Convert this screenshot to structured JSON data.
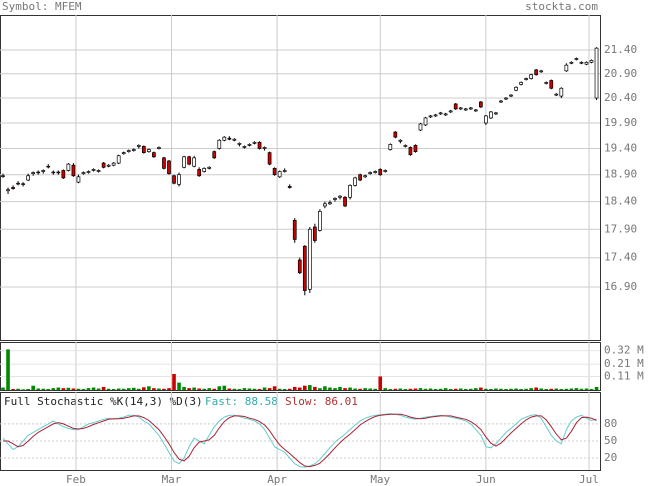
{
  "header": {
    "symbol": "Symbol: MFEM",
    "source": "stockta.com"
  },
  "chart_data": [
    {
      "type": "candlestick",
      "log_scale": true,
      "grid": true,
      "up_color": "#ffffff",
      "down_color": "#cc0000",
      "ylim": [
        16.03,
        22.16
      ],
      "yticks": [
        {
          "value": 21.4,
          "label": "21.40"
        },
        {
          "value": 20.9,
          "label": "20.90"
        },
        {
          "value": 20.4,
          "label": "20.40"
        },
        {
          "value": 19.9,
          "label": "19.90"
        },
        {
          "value": 19.4,
          "label": "19.40"
        },
        {
          "value": 18.9,
          "label": "18.90"
        },
        {
          "value": 18.4,
          "label": "18.40"
        },
        {
          "value": 17.9,
          "label": "17.90"
        },
        {
          "value": 17.4,
          "label": "17.40"
        },
        {
          "value": 16.9,
          "label": "16.90"
        }
      ],
      "xticks": [
        {
          "value": 14.5,
          "label": "Feb"
        },
        {
          "value": 33.5,
          "label": "Mar"
        },
        {
          "value": 54.5,
          "label": "Apr"
        },
        {
          "value": 75,
          "label": "May"
        },
        {
          "value": 96,
          "label": "Jun"
        },
        {
          "value": 116.5,
          "label": "Jul"
        }
      ],
      "open": [
        18.88,
        18.6,
        18.66,
        18.74,
        18.72,
        18.8,
        18.92,
        18.94,
        18.96,
        19.06,
        18.94,
        18.94,
        18.98,
        18.98,
        19.08,
        18.76,
        18.92,
        18.94,
        18.98,
        18.96,
        19.12,
        19.06,
        19.08,
        19.12,
        19.3,
        19.34,
        19.36,
        19.44,
        19.44,
        19.34,
        19.32,
        19.4,
        19.22,
        19.16,
        18.88,
        18.72,
        19.04,
        19.24,
        19.06,
        19.0,
        18.96,
        19.02,
        19.34,
        19.4,
        19.56,
        19.6,
        19.56,
        19.48,
        19.42,
        19.46,
        19.5,
        19.52,
        19.4,
        19.32,
        19.02,
        18.86,
        18.96,
        18.68,
        18.06,
        17.36,
        17.6,
        16.86,
        17.94,
        17.88,
        18.32,
        18.36,
        18.44,
        18.48,
        18.48,
        18.48,
        18.7,
        18.9,
        18.86,
        18.92,
        18.94,
        19.0,
        18.96,
        19.38,
        19.72,
        19.54,
        19.44,
        19.42,
        19.46,
        19.76,
        19.86,
        20.02,
        20.04,
        20.08,
        20.06,
        20.12,
        20.28,
        20.18,
        20.16,
        20.18,
        20.14,
        20.32,
        19.9,
        20.0,
        20.08,
        20.32,
        20.38,
        20.44,
        20.56,
        20.68,
        20.78,
        20.8,
        20.98,
        20.94,
        20.7,
        20.76,
        20.46,
        20.44,
        20.96,
        21.12,
        21.2,
        21.12,
        21.1,
        21.14,
        20.4
      ],
      "high": [
        18.92,
        18.66,
        18.7,
        18.78,
        18.76,
        18.92,
        18.96,
        18.98,
        19.0,
        19.1,
        18.98,
        18.98,
        19.0,
        19.12,
        19.12,
        18.9,
        18.96,
        18.98,
        19.02,
        19.0,
        19.14,
        19.1,
        19.14,
        19.28,
        19.34,
        19.38,
        19.4,
        19.48,
        19.46,
        19.4,
        19.34,
        19.44,
        19.24,
        19.18,
        18.9,
        18.94,
        19.26,
        19.26,
        19.26,
        19.04,
        19.04,
        19.06,
        19.36,
        19.58,
        19.64,
        19.64,
        19.6,
        19.52,
        19.46,
        19.5,
        19.54,
        19.54,
        19.44,
        19.34,
        19.04,
        18.98,
        19.02,
        18.72,
        18.1,
        17.4,
        17.62,
        17.94,
        18.0,
        18.26,
        18.4,
        18.42,
        18.48,
        18.52,
        18.5,
        18.72,
        18.86,
        18.92,
        18.9,
        18.96,
        18.98,
        19.02,
        19.0,
        19.5,
        19.74,
        19.58,
        19.48,
        19.44,
        19.48,
        19.9,
        20.02,
        20.06,
        20.08,
        20.12,
        20.1,
        20.16,
        20.3,
        20.22,
        20.2,
        20.22,
        20.18,
        20.34,
        20.06,
        20.14,
        20.12,
        20.36,
        20.42,
        20.48,
        20.64,
        20.74,
        20.82,
        20.9,
        21.0,
        20.98,
        20.74,
        20.78,
        20.5,
        20.62,
        21.12,
        21.16,
        21.24,
        21.16,
        21.16,
        21.2,
        21.46
      ],
      "low": [
        18.84,
        18.54,
        18.62,
        18.7,
        18.68,
        18.78,
        18.88,
        18.9,
        18.92,
        19.02,
        18.9,
        18.9,
        18.82,
        18.96,
        18.86,
        18.74,
        18.9,
        18.92,
        18.96,
        18.94,
        19.02,
        19.04,
        19.06,
        19.1,
        19.28,
        19.32,
        19.34,
        19.4,
        19.3,
        19.32,
        19.22,
        19.38,
        19.0,
        18.9,
        18.72,
        18.68,
        19.02,
        19.08,
        19.04,
        18.86,
        18.94,
        19.0,
        19.2,
        19.38,
        19.54,
        19.56,
        19.54,
        19.44,
        19.4,
        19.44,
        19.48,
        19.38,
        19.36,
        19.08,
        18.88,
        18.84,
        18.94,
        18.64,
        17.66,
        17.12,
        16.76,
        16.8,
        17.66,
        17.86,
        18.28,
        18.34,
        18.4,
        18.44,
        18.3,
        18.44,
        18.68,
        18.78,
        18.84,
        18.9,
        18.92,
        18.88,
        18.94,
        19.36,
        19.6,
        19.5,
        19.42,
        19.26,
        19.32,
        19.74,
        19.84,
        20.0,
        20.02,
        20.06,
        20.04,
        20.1,
        20.16,
        20.16,
        20.14,
        20.16,
        20.12,
        20.2,
        19.86,
        19.98,
        20.06,
        20.3,
        20.36,
        20.42,
        20.54,
        20.66,
        20.76,
        20.78,
        20.86,
        20.92,
        20.68,
        20.58,
        20.44,
        20.4,
        20.94,
        21.1,
        21.18,
        21.1,
        21.08,
        21.12,
        20.36
      ],
      "close": [
        18.88,
        18.62,
        18.64,
        18.74,
        18.73,
        18.88,
        18.94,
        18.95,
        18.98,
        19.06,
        18.95,
        18.95,
        18.84,
        19.1,
        18.88,
        18.86,
        18.94,
        18.96,
        19.0,
        18.98,
        19.04,
        19.08,
        19.12,
        19.26,
        19.32,
        19.36,
        19.38,
        19.46,
        19.32,
        19.38,
        19.24,
        19.42,
        19.02,
        18.92,
        18.74,
        18.9,
        19.24,
        19.1,
        19.22,
        18.88,
        19.02,
        19.04,
        19.22,
        19.56,
        19.62,
        19.58,
        19.58,
        19.5,
        19.44,
        19.48,
        19.52,
        19.4,
        19.42,
        19.1,
        18.9,
        18.96,
        18.98,
        18.66,
        17.72,
        17.14,
        16.84,
        17.9,
        17.7,
        18.22,
        18.36,
        18.38,
        18.46,
        18.5,
        18.32,
        18.7,
        18.84,
        18.8,
        18.88,
        18.94,
        18.96,
        18.9,
        18.98,
        19.48,
        19.62,
        19.56,
        19.46,
        19.28,
        19.34,
        19.88,
        20.0,
        20.04,
        20.06,
        20.1,
        20.08,
        20.14,
        20.18,
        20.2,
        20.18,
        20.2,
        20.16,
        20.22,
        20.04,
        20.12,
        20.1,
        20.34,
        20.4,
        20.46,
        20.62,
        20.72,
        20.8,
        20.88,
        20.88,
        20.96,
        20.72,
        20.6,
        20.48,
        20.6,
        21.08,
        21.14,
        21.22,
        21.14,
        21.14,
        21.18,
        21.44
      ]
    },
    {
      "type": "bar",
      "up_color": "#008800",
      "down_color": "#cc0000",
      "ylim": [
        0,
        390000
      ],
      "yticks": [
        {
          "value": 320000,
          "label": "0.32 M"
        },
        {
          "value": 210000,
          "label": "0.21 M"
        },
        {
          "value": 110000,
          "label": "0.11 M"
        }
      ],
      "values": [
        20000,
        330000,
        8000,
        10000,
        5000,
        8000,
        35000,
        12000,
        10000,
        8000,
        15000,
        20000,
        15000,
        18000,
        12000,
        10000,
        8000,
        15000,
        20000,
        12000,
        25000,
        10000,
        8000,
        12000,
        10000,
        15000,
        18000,
        10000,
        22000,
        30000,
        15000,
        12000,
        10000,
        15000,
        130000,
        60000,
        25000,
        15000,
        20000,
        12000,
        10000,
        15000,
        10000,
        30000,
        35000,
        12000,
        10000,
        8000,
        15000,
        12000,
        10000,
        8000,
        20000,
        15000,
        30000,
        10000,
        8000,
        10000,
        25000,
        20000,
        35000,
        40000,
        25000,
        15000,
        30000,
        20000,
        15000,
        25000,
        15000,
        20000,
        12000,
        10000,
        15000,
        12000,
        10000,
        110000,
        15000,
        8000,
        10000,
        12000,
        8000,
        10000,
        12000,
        15000,
        10000,
        12000,
        8000,
        10000,
        15000,
        8000,
        10000,
        12000,
        8000,
        10000,
        15000,
        20000,
        10000,
        8000,
        12000,
        10000,
        8000,
        10000,
        12000,
        8000,
        10000,
        15000,
        20000,
        12000,
        8000,
        10000,
        12000,
        8000,
        10000,
        12000,
        15000,
        10000,
        12000,
        8000,
        25000
      ]
    },
    {
      "type": "line",
      "title": "Full Stochastic %K(14,3) %D(3)",
      "ylim": [
        -1,
        136
      ],
      "yticks": [
        80,
        50,
        20
      ],
      "series": [
        {
          "name": "Fast: 88.58",
          "color": "#66cccc",
          "values": [
            55,
            45,
            35,
            40,
            50,
            60,
            65,
            70,
            75,
            80,
            85,
            80,
            75,
            72,
            70,
            70,
            75,
            80,
            82,
            85,
            88,
            90,
            88,
            90,
            92,
            95,
            95,
            92,
            85,
            80,
            70,
            60,
            45,
            30,
            15,
            10,
            20,
            40,
            55,
            50,
            45,
            60,
            75,
            85,
            92,
            95,
            95,
            93,
            90,
            88,
            85,
            80,
            70,
            55,
            40,
            35,
            30,
            20,
            10,
            5,
            4,
            6,
            10,
            18,
            28,
            38,
            48,
            55,
            62,
            70,
            78,
            85,
            90,
            93,
            95,
            96,
            97,
            98,
            97,
            95,
            92,
            90,
            88,
            90,
            92,
            93,
            94,
            95,
            94,
            92,
            90,
            88,
            85,
            80,
            70,
            60,
            40,
            38,
            45,
            55,
            65,
            72,
            80,
            88,
            92,
            95,
            96,
            90,
            75,
            60,
            50,
            45,
            70,
            85,
            92,
            95,
            90,
            86,
            88.58
          ]
        },
        {
          "name": "Slow: 86.01",
          "color": "#aa2233",
          "values": [
            50,
            50,
            45,
            40,
            42,
            50,
            58,
            65,
            70,
            75,
            80,
            82,
            80,
            76,
            72,
            71,
            72,
            75,
            79,
            82,
            85,
            88,
            89,
            89,
            90,
            92,
            94,
            94,
            91,
            86,
            78,
            70,
            58,
            45,
            30,
            18,
            15,
            23,
            38,
            48,
            50,
            52,
            60,
            73,
            84,
            91,
            94,
            94,
            93,
            90,
            88,
            84,
            78,
            68,
            55,
            43,
            35,
            28,
            20,
            12,
            6,
            5,
            7,
            11,
            19,
            28,
            38,
            47,
            55,
            62,
            70,
            78,
            84,
            89,
            93,
            95,
            96,
            97,
            97,
            97,
            95,
            92,
            90,
            89,
            90,
            92,
            93,
            94,
            94,
            94,
            92,
            90,
            88,
            84,
            78,
            70,
            57,
            46,
            41,
            46,
            55,
            64,
            72,
            80,
            87,
            92,
            94,
            94,
            87,
            75,
            62,
            52,
            55,
            67,
            82,
            91,
            92,
            90,
            86.01
          ]
        }
      ]
    }
  ]
}
